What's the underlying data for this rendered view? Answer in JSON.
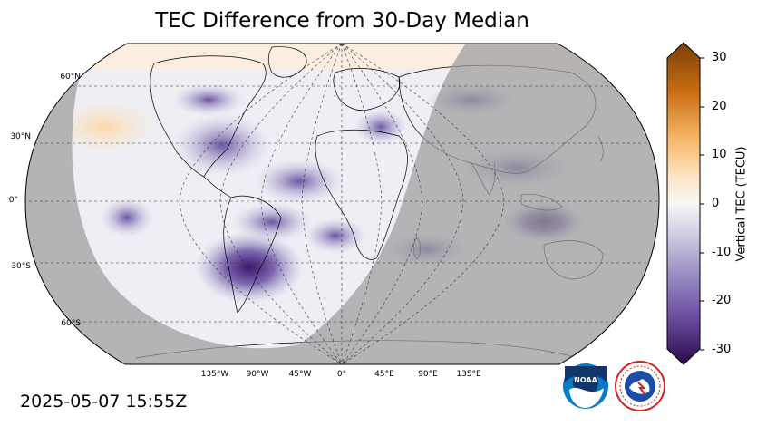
{
  "title": "TEC Difference from 30-Day Median",
  "timestamp": "2025-05-07 15:55Z",
  "lat_labels": [
    "60°N",
    "30°N",
    "0°",
    "30°S",
    "60°S"
  ],
  "lon_labels": [
    "135°W",
    "90°W",
    "45°W",
    "0°",
    "45°E",
    "90°E",
    "135°E"
  ],
  "colorbar": {
    "label": "Vertical TEC (TECU)",
    "ticks": [
      "30",
      "20",
      "10",
      "0",
      "-10",
      "-20",
      "-30"
    ],
    "range": [
      -30,
      30
    ],
    "colors": {
      "max": "#7a3f0a",
      "mid": "#f7f7f7",
      "min": "#2d0a4e"
    }
  },
  "map": {
    "projection": "Robinson",
    "night_shade": "#9c9c9c",
    "land_outline": "#000000",
    "high_value_color": "#ffe2bf",
    "low_value_color": "#4a1c80"
  },
  "logos": [
    "noaa-logo",
    "nws-logo"
  ]
}
